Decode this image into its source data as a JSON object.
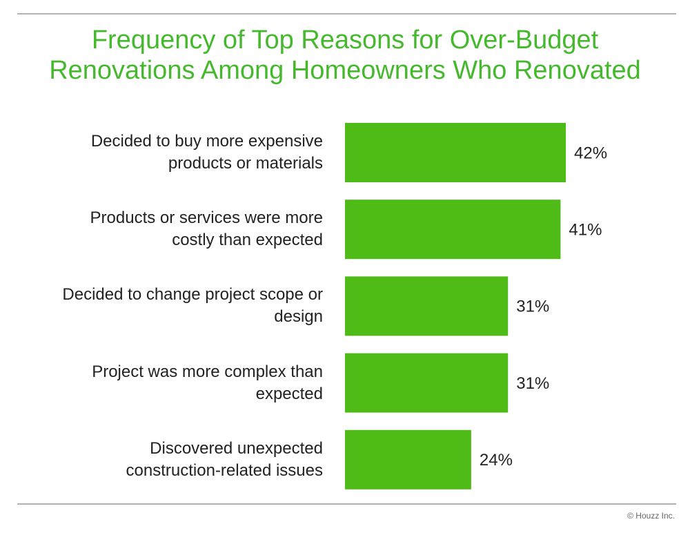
{
  "chart_data": {
    "type": "bar",
    "orientation": "horizontal",
    "title": "Frequency of Top Reasons for Over-Budget\nRenovations Among Homeowners Who Renovated",
    "categories": [
      "Decided to buy more expensive\nproducts or materials",
      "Products or services were more\ncostly than expected",
      "Decided to change project scope or\ndesign",
      "Project was more complex than\nexpected",
      "Discovered unexpected\nconstruction-related issues"
    ],
    "values": [
      42,
      41,
      31,
      31,
      24
    ],
    "value_labels": [
      "42%",
      "41%",
      "31%",
      "31%",
      "24%"
    ],
    "color": "#4fbb16",
    "footer": "© Houzz Inc."
  }
}
